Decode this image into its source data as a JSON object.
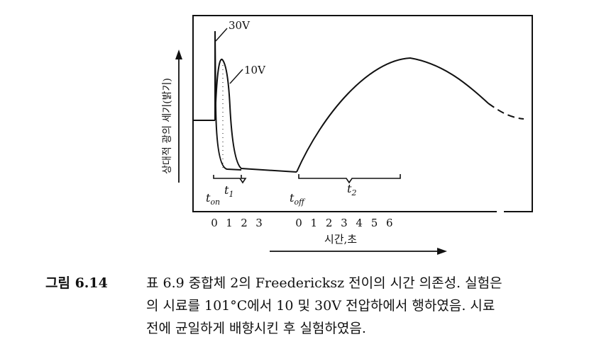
{
  "figure": {
    "ylabel": "상대적 광의 세기(밝기)",
    "xlabel": "시간,초",
    "curve_labels": {
      "v30": "30V",
      "v10": "10V"
    },
    "t_on": {
      "main": "t",
      "sub": "on"
    },
    "t_off": {
      "main": "t",
      "sub": "off"
    },
    "t1": {
      "main": "t",
      "sub": "1"
    },
    "t2": {
      "main": "t",
      "sub": "2"
    },
    "ticks_on": [
      "0",
      "1",
      "2",
      "3"
    ],
    "ticks_off": [
      "0",
      "1",
      "2",
      "3",
      "4",
      "5",
      "6"
    ]
  },
  "caption": {
    "number": "그림 6.14",
    "lines": [
      "표 6.9 중합체 2의 Freedericksz 전이의 시간 의존성. 실험은",
      "의 시료를 101°C에서 10 및 30V 전압하에서 행하였음. 시료",
      "전에 균일하게 배향시킨 후 실험하였음."
    ]
  }
}
